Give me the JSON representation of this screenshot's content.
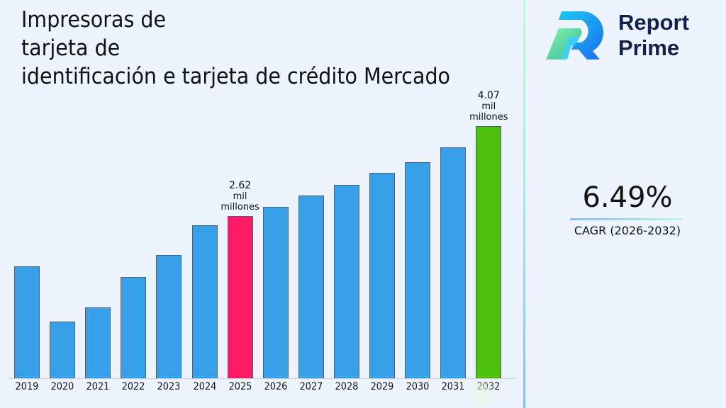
{
  "header": {
    "title_lines": [
      "Impresoras de",
      "tarjeta de",
      "identificación e tarjeta de crédito Mercado"
    ]
  },
  "brand": {
    "name_line1": "Report",
    "name_line2": "Prime",
    "logo_icon": "report-prime-logo-icon"
  },
  "cagr": {
    "value": "6.49%",
    "label": "CAGR (2026-2032)"
  },
  "colors": {
    "bar_default": "#37a0e8",
    "bar_highlight_2025": "#ff1a66",
    "bar_highlight_2032": "#4cbf0f",
    "background": "#eef4fd",
    "brand_text": "#13204a"
  },
  "chart_data": {
    "type": "bar",
    "title": "Impresoras de tarjeta de identificación e tarjeta de crédito Mercado",
    "xlabel": "",
    "ylabel": "",
    "unit": "mil millones",
    "categories": [
      "2019",
      "2020",
      "2021",
      "2022",
      "2023",
      "2024",
      "2025",
      "2026",
      "2027",
      "2028",
      "2029",
      "2030",
      "2031",
      "2032"
    ],
    "values": [
      1.81,
      0.92,
      1.14,
      1.64,
      1.99,
      2.47,
      2.62,
      2.77,
      2.95,
      3.12,
      3.32,
      3.49,
      3.73,
      4.07
    ],
    "annotations": [
      {
        "category": "2025",
        "value_text": "2.62",
        "unit_line1": "mil",
        "unit_line2": "millones"
      },
      {
        "category": "2032",
        "value_text": "4.07",
        "unit_line1": "mil",
        "unit_line2": "millones"
      }
    ],
    "highlight": {
      "2025": "#ff1a66",
      "2032": "#4cbf0f"
    },
    "grid": false,
    "legend": null,
    "ylim": [
      0,
      4.4
    ]
  }
}
